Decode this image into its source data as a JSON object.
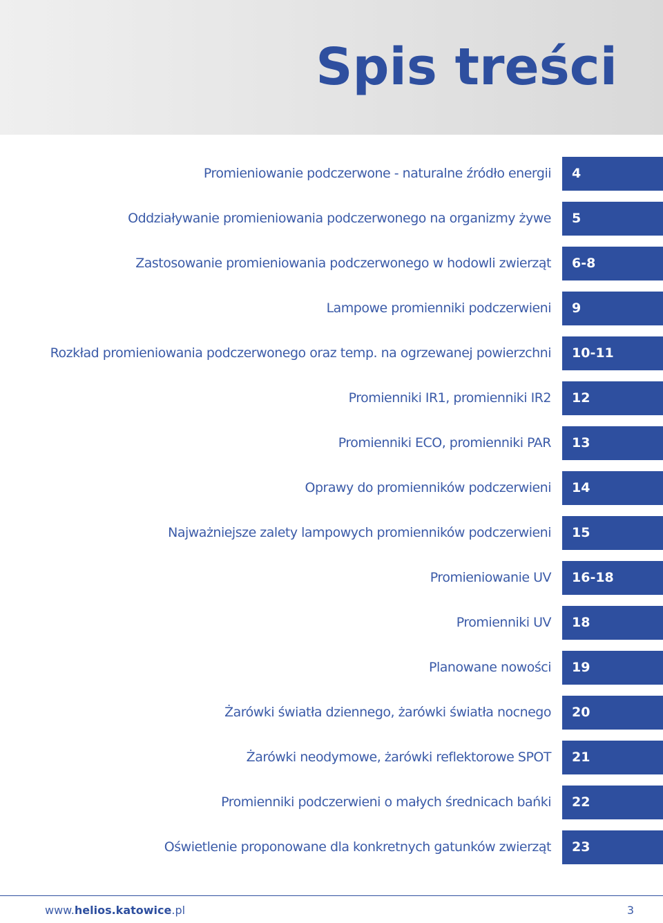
{
  "header": {
    "title": "Spis treści"
  },
  "toc": [
    {
      "label": "Promieniowanie podczerwone - naturalne źródło energii",
      "page": "4"
    },
    {
      "label": "Oddziaływanie promieniowania podczerwonego na organizmy żywe",
      "page": "5"
    },
    {
      "label": "Zastosowanie promieniowania podczerwonego w hodowli zwierząt",
      "page": "6-8"
    },
    {
      "label": "Lampowe promienniki podczerwieni",
      "page": "9"
    },
    {
      "label": "Rozkład promieniowania podczerwonego oraz temp. na ogrzewanej powierzchni",
      "page": "10-11"
    },
    {
      "label": "Promienniki IR1, promienniki IR2",
      "page": "12"
    },
    {
      "label": "Promienniki ECO, promienniki PAR",
      "page": "13"
    },
    {
      "label": "Oprawy do promienników podczerwieni",
      "page": "14"
    },
    {
      "label": "Najważniejsze zalety lampowych promienników podczerwieni",
      "page": "15"
    },
    {
      "label": "Promieniowanie UV",
      "page": "16-18"
    },
    {
      "label": "Promienniki UV",
      "page": "18"
    },
    {
      "label": "Planowane nowości",
      "page": "19"
    },
    {
      "label": "Żarówki światła dziennego, żarówki światła nocnego",
      "page": "20"
    },
    {
      "label": "Żarówki neodymowe, żarówki reflektorowe SPOT",
      "page": "21"
    },
    {
      "label": "Promienniki podczerwieni o małych średnicach bańki",
      "page": "22"
    },
    {
      "label": "Oświetlenie proponowane dla konkretnych gatunków zwierząt",
      "page": "23"
    }
  ],
  "footer": {
    "url_prefix": "www.",
    "url_domain": "helios.katowice",
    "url_suffix": ".pl",
    "page_number": "3"
  }
}
